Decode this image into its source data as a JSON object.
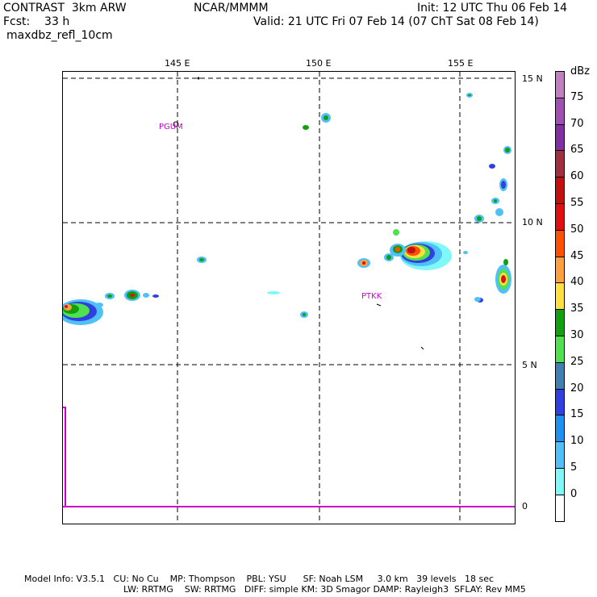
{
  "header": {
    "model": "CONTRAST  3km ARW",
    "org": "NCAR/MMMM",
    "init": "Init: 12 UTC Thu 06 Feb 14",
    "fcst": "Fcst:    33 h",
    "valid": "Valid: 21 UTC Fri 07 Feb 14 (07 ChT Sat 08 Feb 14)",
    "field": "maxdbz_refl_10cm"
  },
  "lon_labels": [
    "145 E",
    "150 E",
    "155 E"
  ],
  "lat_labels": [
    "15 N",
    "10 N",
    "5 N",
    "0"
  ],
  "stations": [
    "PGUM",
    "PTKK"
  ],
  "colorbar": {
    "unit": "dBz",
    "ticks": [
      "75",
      "70",
      "65",
      "60",
      "55",
      "50",
      "45",
      "40",
      "35",
      "30",
      "25",
      "20",
      "15",
      "10",
      "5",
      "0"
    ],
    "colors": [
      "#c080c0",
      "#a050b0",
      "#8030a0",
      "#a03040",
      "#c01010",
      "#e01010",
      "#ff5000",
      "#ffa040",
      "#ffe040",
      "#10a010",
      "#50e050",
      "#4080b0",
      "#3040e0",
      "#2090f0",
      "#50c0f8",
      "#80f8f8",
      "#ffffff"
    ]
  },
  "footer": {
    "line1": "Model Info: V3.5.1   CU: No Cu    MP: Thompson    PBL: YSU      SF: Noah LSM     3.0 km   39 levels   18 sec",
    "line2": "LW: RRTMG    SW: RRTMG   DIFF: simple KM: 3D Smagor DAMP: Rayleigh3  SFLAY: Rev MM5"
  }
}
